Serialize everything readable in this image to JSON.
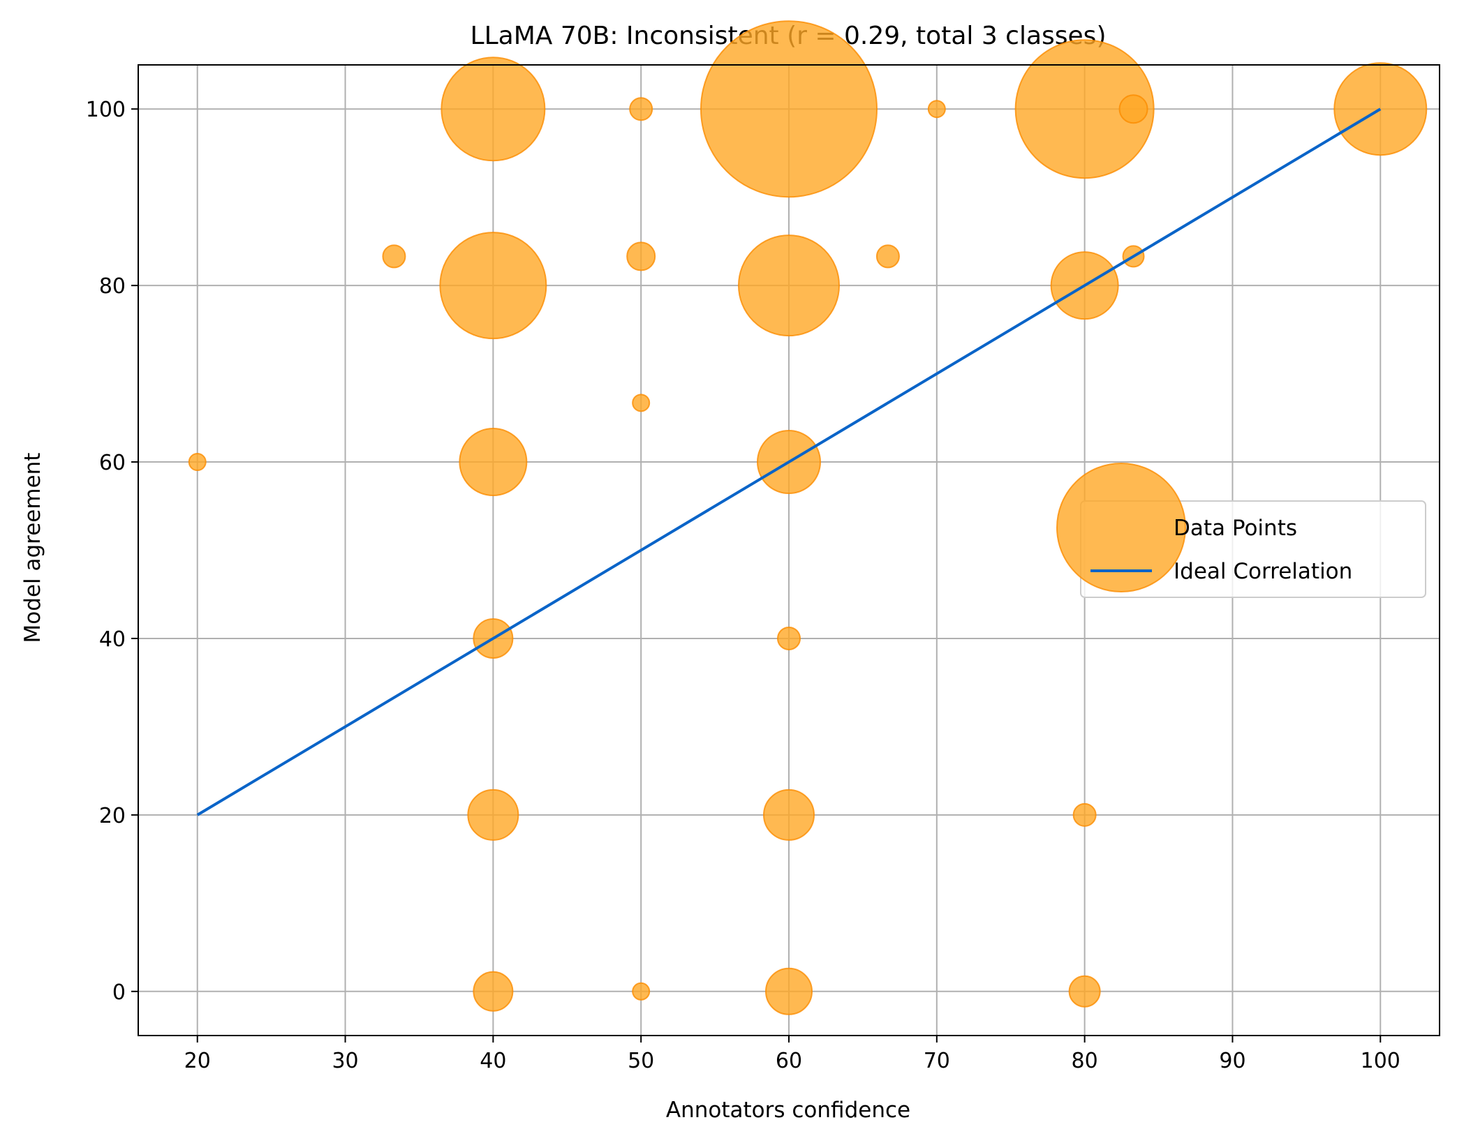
{
  "chart_data": {
    "type": "scatter",
    "title": "LLaMA 70B: Inconsistent (r = 0.29, total 3 classes)",
    "xlabel": "Annotators confidence",
    "ylabel": "Model agreement",
    "xlim": [
      16,
      104
    ],
    "ylim": [
      -5,
      105
    ],
    "xticks": [
      20,
      30,
      40,
      50,
      60,
      70,
      80,
      90,
      100
    ],
    "yticks": [
      0,
      20,
      40,
      60,
      80,
      100
    ],
    "grid": true,
    "legend_position": "center-right",
    "colors": {
      "points": "#ffa726",
      "points_edge": "#fb8c00",
      "ideal_line": "#0a64c8",
      "grid": "#b0b0b0"
    },
    "series": [
      {
        "name": "Data Points",
        "type": "scatter",
        "size_note": "bubble radius reflects relative count",
        "points": [
          {
            "x": 40,
            "y": 100,
            "r": 74
          },
          {
            "x": 50,
            "y": 100,
            "r": 16
          },
          {
            "x": 60,
            "y": 100,
            "r": 126
          },
          {
            "x": 70,
            "y": 100,
            "r": 12
          },
          {
            "x": 80,
            "y": 100,
            "r": 99
          },
          {
            "x": 83.3,
            "y": 100,
            "r": 20
          },
          {
            "x": 100,
            "y": 100,
            "r": 66
          },
          {
            "x": 33.3,
            "y": 83.3,
            "r": 16
          },
          {
            "x": 40,
            "y": 80,
            "r": 76
          },
          {
            "x": 50,
            "y": 83.3,
            "r": 20
          },
          {
            "x": 60,
            "y": 80,
            "r": 72
          },
          {
            "x": 66.7,
            "y": 83.3,
            "r": 16
          },
          {
            "x": 80,
            "y": 80,
            "r": 48
          },
          {
            "x": 83.3,
            "y": 83.3,
            "r": 15
          },
          {
            "x": 50,
            "y": 66.7,
            "r": 12
          },
          {
            "x": 20,
            "y": 60,
            "r": 12
          },
          {
            "x": 40,
            "y": 60,
            "r": 48
          },
          {
            "x": 60,
            "y": 60,
            "r": 45
          },
          {
            "x": 40,
            "y": 40,
            "r": 28
          },
          {
            "x": 60,
            "y": 40,
            "r": 16
          },
          {
            "x": 40,
            "y": 20,
            "r": 36
          },
          {
            "x": 60,
            "y": 20,
            "r": 36
          },
          {
            "x": 80,
            "y": 20,
            "r": 16
          },
          {
            "x": 40,
            "y": 0,
            "r": 28
          },
          {
            "x": 50,
            "y": 0,
            "r": 12
          },
          {
            "x": 60,
            "y": 0,
            "r": 33
          },
          {
            "x": 80,
            "y": 0,
            "r": 22
          }
        ]
      },
      {
        "name": "Ideal Correlation",
        "type": "line",
        "points": [
          {
            "x": 20,
            "y": 20
          },
          {
            "x": 100,
            "y": 100
          }
        ]
      }
    ],
    "legend": [
      {
        "label": "Data Points"
      },
      {
        "label": "Ideal Correlation"
      }
    ]
  }
}
